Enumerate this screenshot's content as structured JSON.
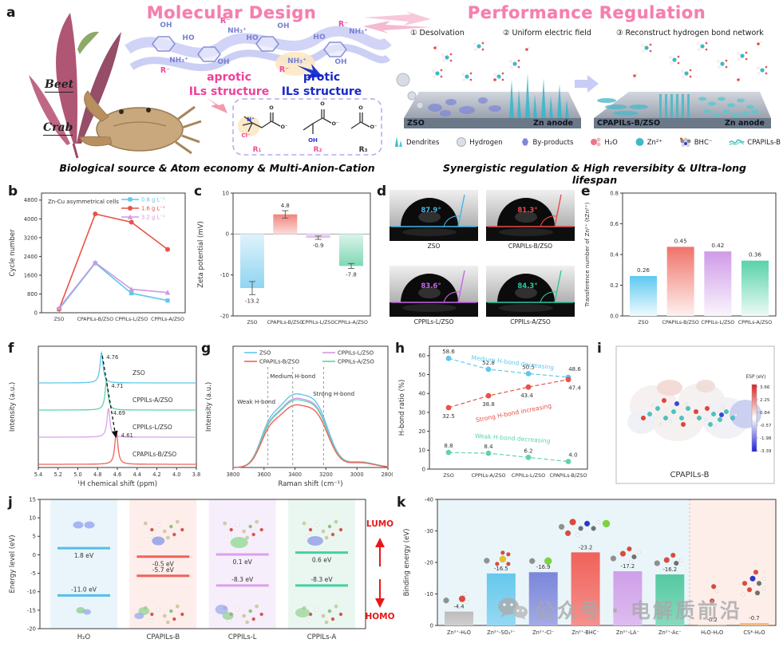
{
  "letters": {
    "a": "a",
    "b": "b",
    "c": "c",
    "d": "d",
    "e": "e",
    "f": "f",
    "g": "g",
    "h": "h",
    "i": "i",
    "j": "j",
    "k": "k"
  },
  "panel_a": {
    "molecular_design_title": "Molecular Design",
    "performance_title": "Performance Regulation",
    "beet_label": "Beet",
    "crab_label": "Crab",
    "aprotic_label": "aprotic",
    "protic_label": "protic",
    "ils_structure": "ILs structure",
    "chain_labels": {
      "oh": "OH",
      "ho": "HO",
      "nh3": "NH₃⁺",
      "r_minus": "R⁻"
    },
    "molecule_box": {
      "n_plus": "N⁺",
      "cl": "Cl⁻",
      "o": "O",
      "o_minus": "O⁻",
      "oh": "OH",
      "r1": "R₁",
      "r2": "R₂",
      "r3": "R₃"
    },
    "steps": [
      "① Desolvation",
      "② Uniform electric field",
      "③ Reconstruct hydrogen bond network"
    ],
    "slabs": [
      {
        "surface": "ZSO",
        "electrode": "Zn anode"
      },
      {
        "surface": "CPAPILs-B/ZSO",
        "electrode": "Zn anode"
      }
    ],
    "legend": [
      "Dendrites",
      "Hydrogen",
      "By-products",
      "H₂O",
      "Zn²⁺",
      "BHC⁻",
      "CPAPILs-B"
    ],
    "subtitle_left": "Biological source & Atom economy & Multi-Anion-Cation",
    "subtitle_right": "Synergistic regulation & High reversibity & Ultra-long lifespan"
  },
  "chart_data": [
    {
      "panel": "b",
      "type": "line",
      "title": "Zn-Cu asymmetrical cells",
      "ylabel": "Cycle number",
      "ylim": [
        0,
        5100
      ],
      "yticks": [
        0,
        800,
        1600,
        2400,
        3200,
        4000,
        4800
      ],
      "categories": [
        "ZSO",
        "CPAPILs-B/ZSO",
        "CPPILs-L/ZSO",
        "CPPILs-A/ZSO"
      ],
      "series": [
        {
          "name": "0.8 g L⁻¹",
          "color": "#5fc8ea",
          "marker": "square",
          "values": [
            150,
            2110,
            830,
            520
          ]
        },
        {
          "name": "1.6 g L⁻¹",
          "color": "#e8524a",
          "marker": "circle",
          "values": [
            150,
            4210,
            3860,
            2700
          ]
        },
        {
          "name": "3.2 g L⁻¹",
          "color": "#cf9ae0",
          "marker": "triangle",
          "values": [
            200,
            2140,
            1000,
            860
          ]
        }
      ]
    },
    {
      "panel": "c",
      "type": "bar",
      "ylabel": "Zeta potential (mV)",
      "ylim": [
        -20,
        10
      ],
      "yticks": [
        10,
        0,
        -10,
        -20
      ],
      "categories": [
        "ZSO",
        "CPAPILs-B/ZSO",
        "CPPILs-L/ZSO",
        "CPPILs-A/ZSO"
      ],
      "values": [
        -13.2,
        4.8,
        -0.9,
        -7.8
      ],
      "errors": [
        1.6,
        0.9,
        0.4,
        0.6
      ],
      "colors": [
        "#8fd4f2",
        "#f2837c",
        "#dfb0f0",
        "#7fd8b4"
      ]
    },
    {
      "panel": "d",
      "type": "contact-angle",
      "items": [
        {
          "label": "ZSO",
          "angle": "87.9°",
          "color": "#45b4e8"
        },
        {
          "label": "CPAPILs-B/ZSO",
          "angle": "81.3°",
          "color": "#e84b4b"
        },
        {
          "label": "CPPILs-L/ZSO",
          "angle": "83.6°",
          "color": "#c465e8"
        },
        {
          "label": "CPPILs-A/ZSO",
          "angle": "84.3°",
          "color": "#2cc8a0"
        }
      ]
    },
    {
      "panel": "e",
      "type": "bar",
      "ylabel": "Transference number of Zn²⁺ (tZn²⁺)",
      "ylim": [
        0,
        0.8
      ],
      "yticks": [
        0,
        0.2,
        0.4,
        0.6,
        0.8
      ],
      "categories": [
        "ZSO",
        "CPAPILs-B/ZSO",
        "CPPILs-L/ZSO",
        "CPPILs-A/ZSO"
      ],
      "values": [
        0.26,
        0.45,
        0.42,
        0.36
      ],
      "colors": [
        "#5ec8f0",
        "#f0736a",
        "#cf9ae8",
        "#58d2a8"
      ]
    },
    {
      "panel": "f",
      "type": "line",
      "xlabel": "¹H chemical shift (ppm)",
      "ylabel": "Intensity (a.u.)",
      "xlim": [
        5.4,
        3.8
      ],
      "xticks": [
        5.4,
        5.2,
        5.0,
        4.8,
        4.6,
        4.4,
        4.2,
        4.0,
        3.8
      ],
      "traces": [
        {
          "name": "ZSO",
          "peak_ppm": 4.76,
          "color": "#5fc8ea"
        },
        {
          "name": "CPPILs-A/ZSO",
          "peak_ppm": 4.71,
          "color": "#5ed4ac"
        },
        {
          "name": "CPPILs-L/ZSO",
          "peak_ppm": 4.69,
          "color": "#d8a2ee"
        },
        {
          "name": "CPAPILs-B/ZSO",
          "peak_ppm": 4.61,
          "color": "#f0625a"
        }
      ]
    },
    {
      "panel": "g",
      "type": "line",
      "xlabel": "Raman shift (cm⁻¹)",
      "ylabel": "Intensity (a.u.)",
      "xlim": [
        3800,
        2800
      ],
      "xticks": [
        3800,
        3600,
        3400,
        3200,
        3000,
        2800
      ],
      "series": [
        {
          "name": "ZSO",
          "color": "#5fc8ea",
          "amplitude": 1.0
        },
        {
          "name": "CPAPILs-B/ZSO",
          "color": "#f0625a",
          "amplitude": 0.85
        },
        {
          "name": "CPPILs-L/ZSO",
          "color": "#cf9ae0",
          "amplitude": 0.94
        },
        {
          "name": "CPPILs-A/ZSO",
          "color": "#5ed4ac",
          "amplitude": 0.92
        }
      ],
      "annotations": [
        {
          "text": "Weak H-bond",
          "x": 3575
        },
        {
          "text": "Medium H-bond",
          "x": 3415
        },
        {
          "text": "Strong H-bond",
          "x": 3215
        }
      ]
    },
    {
      "panel": "h",
      "type": "scatter",
      "ylabel": "H-bond ratio (%)",
      "ylim": [
        0,
        65
      ],
      "yticks": [
        0,
        10,
        20,
        30,
        40,
        50,
        60
      ],
      "categories": [
        "ZSO",
        "CPPILs-A/ZSO",
        "CPPILs-L/ZSO",
        "CPAPILs-B/ZSO"
      ],
      "series": [
        {
          "name": "Medium H-bond decreasing",
          "color": "#5fc8ea",
          "values": [
            58.6,
            52.8,
            50.5,
            48.6
          ]
        },
        {
          "name": "Strong H-bond increasing",
          "color": "#e8524a",
          "values": [
            32.5,
            38.8,
            43.4,
            47.4
          ]
        },
        {
          "name": "Weak H-bond decreasing",
          "color": "#5ed4ac",
          "values": [
            8.8,
            8.4,
            6.2,
            4.0
          ]
        }
      ]
    },
    {
      "panel": "i",
      "type": "esp-map",
      "molecule_label": "CPAPILs-B",
      "scale_title": "ESP (eV)",
      "scale_ticks": [
        "3.66",
        "2.25",
        "0.84",
        "-0.57",
        "-1.98",
        "-3.39"
      ]
    },
    {
      "panel": "j",
      "type": "energy-levels",
      "ylabel": "Energy level (eV)",
      "ylim": [
        -20,
        15
      ],
      "yticks": [
        15,
        10,
        5,
        0,
        -5,
        -10,
        -15,
        -20
      ],
      "categories": [
        "H₂O",
        "CPAPILs-B",
        "CPPILs-L",
        "CPPILs-A"
      ],
      "lumo_ev": [
        1.8,
        -0.5,
        0.1,
        0.6
      ],
      "homo_ev": [
        -11.0,
        -5.7,
        -8.3,
        -8.3
      ],
      "level_unit": "eV",
      "colors": [
        "#55bee8",
        "#f0625a",
        "#d8a2ee",
        "#46cfa2"
      ],
      "column_tints": [
        "#e9f5fb",
        "#fdeeec",
        "#f7eefb",
        "#eaf7f1"
      ],
      "lumo_label": "LUMO",
      "homo_label": "HOMO"
    },
    {
      "panel": "k",
      "type": "bar",
      "ylabel": "Binding energy (eV)",
      "ylim": [
        0,
        -40
      ],
      "yticks": [
        0,
        -10,
        -20,
        -30,
        -40
      ],
      "categories": [
        "Zn²⁺-H₂O",
        "Zn²⁺-SO₄²⁻",
        "Zn²⁺-Cl⁻",
        "Zn²⁺-BHC⁻",
        "Zn²⁺-LA⁻",
        "Zn²⁺-Ac⁻",
        "H₂O-H₂O",
        "CS*-H₂O"
      ],
      "values": [
        -4.4,
        -16.5,
        -16.9,
        -23.2,
        -17.2,
        -16.2,
        -0.2,
        -0.7
      ],
      "colors": [
        "#bcbcbc",
        "#66c8ec",
        "#7c86da",
        "#f0625a",
        "#cf9fe8",
        "#55c9a2",
        "#c2aa6a",
        "#f2a964"
      ],
      "region_tints": {
        "left": "#eaf5fa",
        "right": "#fdeeea"
      }
    }
  ],
  "watermark": {
    "icon": "wechat-icon",
    "text": "公众号 · 电解质前沿"
  }
}
